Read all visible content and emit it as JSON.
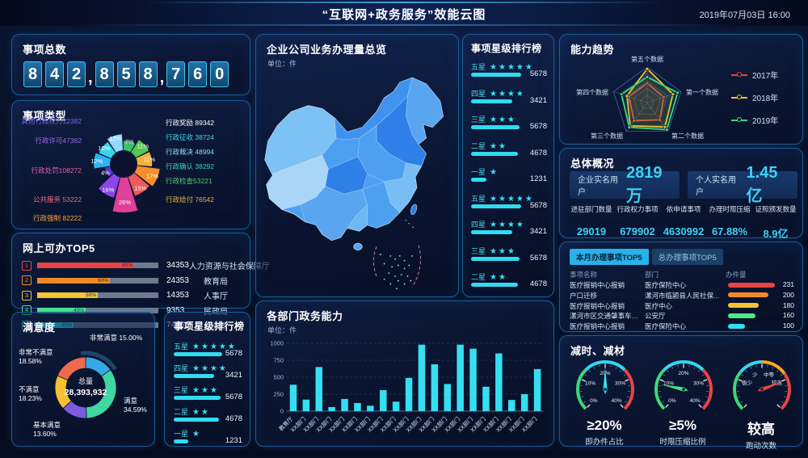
{
  "header": {
    "title": "“互联网+政务服务”效能云图",
    "datetime": "2019年07月03日  16:00"
  },
  "panels": {
    "total": {
      "title": "事项总数",
      "value": "842,858,760"
    },
    "types": {
      "title": "事项类型"
    },
    "online": {
      "title": "网上可办TOP5"
    },
    "satisfaction": {
      "title": "满意度",
      "center_label": "总量",
      "center_value": "28,393,932"
    },
    "star_small": {
      "title": "事项星级排行榜"
    },
    "map": {
      "title": "企业公司业务办理量总览",
      "unit": "单位：件"
    },
    "star_mid": {
      "title": "事项星级排行榜"
    },
    "dept": {
      "title": "各部门政务能力",
      "unit": "单位：件"
    },
    "radar": {
      "title": "能力趋势"
    },
    "overview": {
      "title": "总体概况",
      "cards": [
        {
          "label": "企业实名用户",
          "value": "2819万"
        },
        {
          "label": "个人实名用户",
          "value": "1.45亿"
        }
      ],
      "stats": [
        {
          "label": "进驻部门数量",
          "value": "29019"
        },
        {
          "label": "行政权力事项",
          "value": "679902"
        },
        {
          "label": "依申请事项",
          "value": "4630992"
        },
        {
          "label": "办理时限压缩",
          "value": "67.88%"
        },
        {
          "label": "证照颁发数量",
          "value": "8.9亿"
        }
      ]
    },
    "table": {
      "tabs": [
        {
          "label": "本月办理事项TOP5",
          "active": true
        },
        {
          "label": "总办理事项TOP5",
          "active": false
        }
      ],
      "headers": [
        "事项名称",
        "部门",
        "办件量"
      ]
    },
    "reduce": {
      "title": "减时、减材"
    }
  },
  "chart_data": {
    "item_types_rose": {
      "type": "pie",
      "slices": [
        {
          "text": "行政奖励 89342",
          "pct": 12,
          "color": "#2fb3f3",
          "label_color": "#ffffff",
          "side": "right"
        },
        {
          "text": "行政征收 38724",
          "pct": 10,
          "color": "#35d6e8",
          "label_color": "#3fd6e8",
          "side": "right"
        },
        {
          "text": "行政裁决 48994",
          "pct": 12,
          "color": "#93d9f9",
          "label_color": "#93d9f9",
          "side": "right"
        },
        {
          "text": "行政确认 38292",
          "pct": 7,
          "color": "#3dbf6e",
          "label_color": "#3fd0c0",
          "side": "right"
        },
        {
          "text": "行政检查53221",
          "pct": 11,
          "color": "#52c94f",
          "label_color": "#52c96a",
          "side": "right"
        },
        {
          "text": "行政给付 76542",
          "pct": 11,
          "color": "#f2b03c",
          "label_color": "#e8b13f",
          "side": "right"
        },
        {
          "text": "行政强制 82222",
          "pct": 17,
          "color": "#f7902c",
          "label_color": "#f7a23c",
          "side": "left"
        },
        {
          "text": "公共服务 53222",
          "pct": 15,
          "color": "#f05a5a",
          "label_color": "#f06a7a",
          "side": "left"
        },
        {
          "text": "行政处罚108272",
          "pct": 26,
          "color": "#e0409a",
          "label_color": "#e060a8",
          "side": "left"
        },
        {
          "text": "行政许可47382",
          "pct": 16,
          "color": "#8a46e8",
          "label_color": "#9a6ae8",
          "side": "left"
        },
        {
          "text": "其他行政权力12382",
          "pct": 4,
          "color": "#5a35c8",
          "label_color": "#7a6ae0",
          "side": "left"
        }
      ]
    },
    "online_top5_bars": {
      "type": "bar",
      "rows": [
        {
          "rank": "1",
          "pct": 80,
          "pct_label": "80%",
          "value": "34353",
          "dept": "人力资源与社会保障厅",
          "color": "#e84545"
        },
        {
          "rank": "2",
          "pct": 60,
          "pct_label": "60%",
          "value": "24353",
          "dept": "教育局",
          "color": "#f08a28"
        },
        {
          "rank": "3",
          "pct": 50,
          "pct_label": "50%",
          "value": "14353",
          "dept": "人事厅",
          "color": "#f5c433"
        },
        {
          "rank": "4",
          "pct": 40,
          "pct_label": "40%",
          "value": "9353",
          "dept": "民政局",
          "color": "#4be88a"
        },
        {
          "rank": "5",
          "pct": 30,
          "pct_label": "30%",
          "value": "74353",
          "dept": "公安厅",
          "color": "#2ce0f0"
        }
      ]
    },
    "satisfaction_donut": {
      "type": "pie",
      "total": "28,393,932",
      "slices": [
        {
          "label": "非常满意",
          "pct": 15.0,
          "pct_label": "15.00%",
          "color": "#38a8e8"
        },
        {
          "label": "满意",
          "pct": 34.59,
          "pct_label": "34.59%",
          "color": "#3fd6a0"
        },
        {
          "label": "基本满意",
          "pct": 13.6,
          "pct_label": "13.60%",
          "color": "#7b5be0"
        },
        {
          "label": "不满意",
          "pct": 18.23,
          "pct_label": "18.23%",
          "color": "#f5c033"
        },
        {
          "label": "非常不满意",
          "pct": 18.58,
          "pct_label": "18.58%",
          "color": "#ef6a4c"
        }
      ]
    },
    "star_ranking_small": {
      "type": "bar",
      "rows": [
        {
          "label": "五星",
          "stars": 5,
          "value": "5678",
          "bar_pct": 100
        },
        {
          "label": "四星",
          "stars": 4,
          "value": "3421",
          "bar_pct": 83
        },
        {
          "label": "三星",
          "stars": 3,
          "value": "5678",
          "bar_pct": 97
        },
        {
          "label": "二星",
          "stars": 2,
          "value": "4678",
          "bar_pct": 93
        },
        {
          "label": "一星",
          "stars": 1,
          "value": "1231",
          "bar_pct": 30
        }
      ]
    },
    "star_ranking_mid": {
      "type": "bar",
      "rows": [
        {
          "label": "五星",
          "stars": 5,
          "value": "5678",
          "bar_pct": 100
        },
        {
          "label": "四星",
          "stars": 4,
          "value": "3421",
          "bar_pct": 83
        },
        {
          "label": "三星",
          "stars": 3,
          "value": "5678",
          "bar_pct": 97
        },
        {
          "label": "二星",
          "stars": 2,
          "value": "4678",
          "bar_pct": 93
        },
        {
          "label": "一星",
          "stars": 1,
          "value": "1231",
          "bar_pct": 30
        },
        {
          "label": "五星",
          "stars": 5,
          "value": "5678",
          "bar_pct": 100
        },
        {
          "label": "四星",
          "stars": 4,
          "value": "3421",
          "bar_pct": 83
        },
        {
          "label": "三星",
          "stars": 3,
          "value": "5678",
          "bar_pct": 97
        },
        {
          "label": "二星",
          "stars": 2,
          "value": "4678",
          "bar_pct": 93
        }
      ]
    },
    "dept_capability_bar": {
      "type": "bar",
      "categories": [
        "教育厅",
        "XX部门",
        "XX部门",
        "XX部门",
        "XX部门",
        "XX部门",
        "XX部门",
        "XX部门",
        "XX部门",
        "XX部门",
        "XX部门",
        "XX部门",
        "XX部门",
        "XX部门",
        "XX部门",
        "XX部门",
        "XX部门",
        "XX部门",
        "XX部门",
        "XX部门"
      ],
      "values": [
        390,
        170,
        650,
        60,
        180,
        120,
        80,
        310,
        140,
        490,
        980,
        690,
        400,
        980,
        920,
        360,
        850,
        165,
        250,
        620
      ],
      "yticks": [
        0,
        250,
        500,
        750,
        1000
      ],
      "ylim": [
        0,
        1000
      ],
      "bar_color": "#35dff0"
    },
    "capability_trend_radar": {
      "type": "radar",
      "axes": [
        "第五个数据",
        "第一个数据",
        "第二个数据",
        "第三个数据",
        "第四个数据"
      ],
      "max": 100,
      "series": [
        {
          "name": "2017年",
          "color": "#e8453c",
          "values": [
            55,
            49,
            60,
            63,
            54
          ]
        },
        {
          "name": "2018年",
          "color": "#f5c033",
          "values": [
            95,
            76,
            85,
            81,
            60
          ]
        },
        {
          "name": "2019年",
          "color": "#3fd67a",
          "values": [
            72,
            90,
            94,
            86,
            76
          ]
        }
      ]
    },
    "reduce_gauges": [
      {
        "value": "≥20%",
        "label": "即办件占比",
        "ticks": [
          "0%",
          "10%",
          "20%",
          "30%",
          "40%"
        ],
        "needle_deg": 0,
        "needle_color": "#35e0f0",
        "segments": [
          {
            "from": -135,
            "to": -45,
            "color": "#3fd67a"
          },
          {
            "from": -45,
            "to": 45,
            "color": "#35d6f0"
          },
          {
            "from": 45,
            "to": 135,
            "color": "#e84545"
          }
        ]
      },
      {
        "value": "≥5%",
        "label": "时限压缩比例",
        "ticks": [
          "0%",
          "10%",
          "20%",
          "30%",
          "40%"
        ],
        "needle_deg": -78,
        "needle_color": "#3fe87a",
        "segments": [
          {
            "from": -135,
            "to": -45,
            "color": "#3fd67a"
          },
          {
            "from": -45,
            "to": 45,
            "color": "#35d6f0"
          },
          {
            "from": 45,
            "to": 135,
            "color": "#e84545"
          }
        ]
      },
      {
        "value": "较高",
        "label": "跑动次数",
        "ticks": [
          "极少",
          "少",
          "中等",
          "较高"
        ],
        "needle_deg": 70,
        "needle_color": "#e8453c",
        "segments": [
          {
            "from": -135,
            "to": -50,
            "color": "#3fd67a"
          },
          {
            "from": -50,
            "to": 0,
            "color": "#35d6f0"
          },
          {
            "from": 0,
            "to": 55,
            "color": "#f5a623"
          },
          {
            "from": 55,
            "to": 135,
            "color": "#e84545"
          }
        ]
      }
    ],
    "top5_table": {
      "type": "table",
      "rows": [
        {
          "name": "医疗报销中心报销",
          "dept": "医疗保险中心",
          "pct": 100,
          "color": "#e84545",
          "value": "231"
        },
        {
          "name": "户口迁移",
          "dept": "漯河市临颍县人民社保...",
          "pct": 87,
          "color": "#f08a28",
          "value": "200"
        },
        {
          "name": "医疗报销中心报销",
          "dept": "医疗中心",
          "pct": 66,
          "color": "#f5c433",
          "value": "180"
        },
        {
          "name": "漯河市区交通肇事车辆后续处...",
          "dept": "公安厅",
          "pct": 58,
          "color": "#4be88a",
          "value": "160"
        },
        {
          "name": "医疗报销中心报销",
          "dept": "医疗保险中心",
          "pct": 36,
          "color": "#2ce0f0",
          "value": "100"
        }
      ]
    },
    "map": {
      "type": "choropleth",
      "region": "China",
      "unit": "件"
    }
  }
}
